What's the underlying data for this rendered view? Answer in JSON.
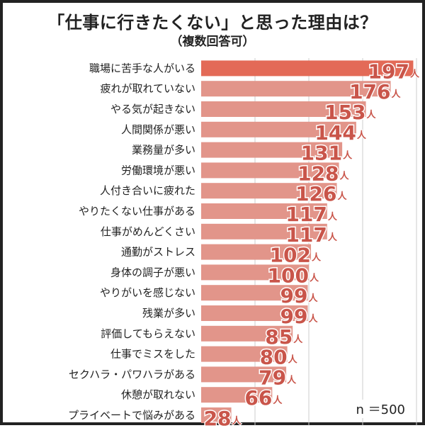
{
  "title": "「仕事に行きたくない」と思った理由は？",
  "subtitle": "（複数回答可）",
  "note": "n ＝500",
  "colors": {
    "top_bar": "#e36a57",
    "bar": "#e2958a",
    "value_text": "#c9554a",
    "grid": "#cccccc"
  },
  "chart_data": {
    "type": "bar",
    "orientation": "horizontal",
    "unit": "人",
    "xlim": [
      0,
      200
    ],
    "grid": true,
    "categories": [
      "職場に苦手な人がいる",
      "疲れが取れていない",
      "やる気が起きない",
      "人間関係が悪い",
      "業務量が多い",
      "労働環境が悪い",
      "人付き合いに疲れた",
      "やりたくない仕事がある",
      "仕事がめんどくさい",
      "通勤がストレス",
      "身体の調子が悪い",
      "やりがいを感じない",
      "残業が多い",
      "評価してもらえない",
      "仕事でミスをした",
      "セクハラ・パワハラがある",
      "休憩が取れない",
      "プライベートで悩みがある"
    ],
    "values": [
      197,
      176,
      153,
      144,
      131,
      128,
      126,
      117,
      117,
      102,
      100,
      99,
      99,
      85,
      80,
      79,
      66,
      28
    ]
  }
}
